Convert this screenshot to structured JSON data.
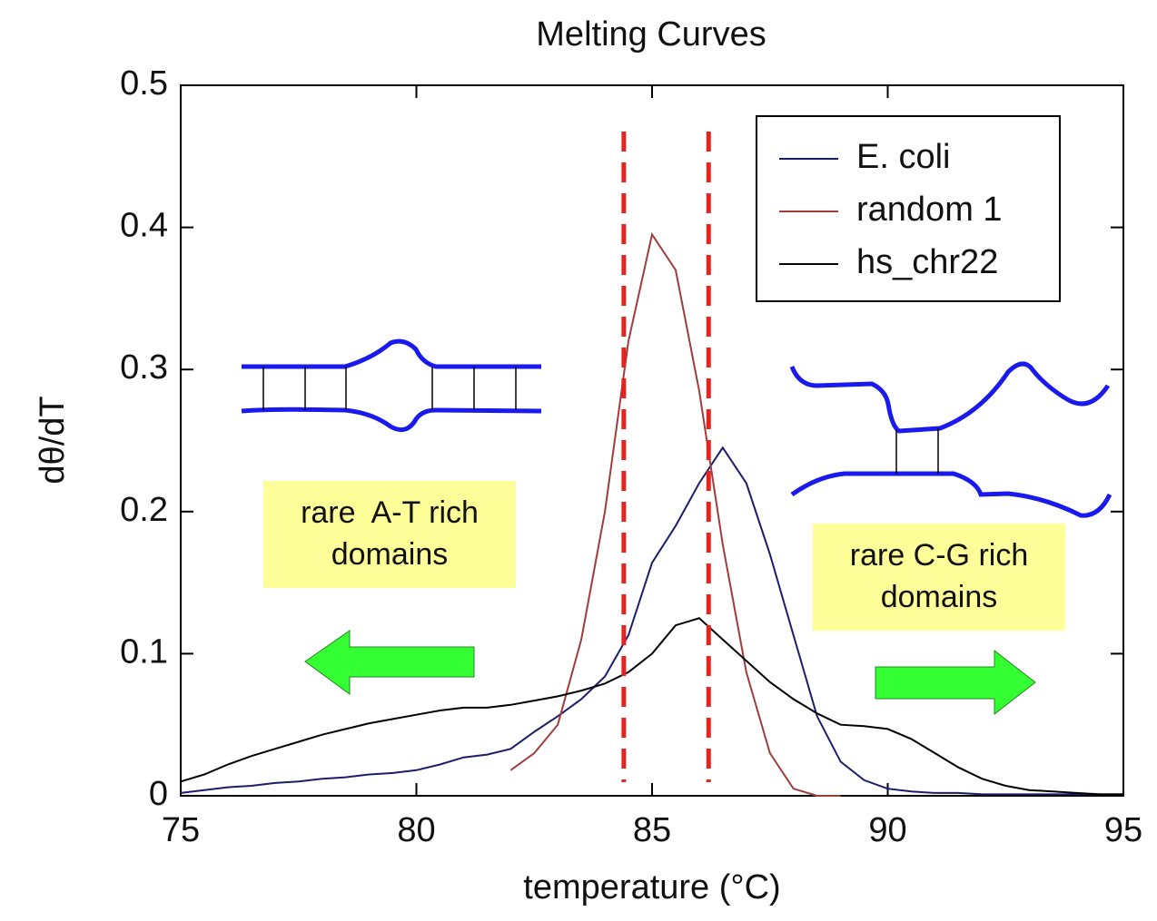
{
  "chart_data": {
    "type": "line",
    "title": "Melting Curves",
    "x_label": "temperature (°C)",
    "y_label": "dθ/dT",
    "x": [
      75,
      75.5,
      76,
      76.5,
      77,
      77.5,
      78,
      78.5,
      79,
      79.5,
      80,
      80.5,
      81,
      81.5,
      82,
      82.5,
      83,
      83.5,
      84,
      84.5,
      85,
      85.5,
      86,
      86.5,
      87,
      87.5,
      88,
      88.5,
      89,
      89.5,
      90,
      90.5,
      91,
      91.5,
      92,
      92.5,
      93,
      93.5,
      94,
      94.5,
      95
    ],
    "series": [
      {
        "name": "E. coli",
        "color": "#1c1c6e",
        "values": [
          0.002,
          0.004,
          0.006,
          0.007,
          0.009,
          0.01,
          0.012,
          0.013,
          0.015,
          0.016,
          0.018,
          0.022,
          0.027,
          0.029,
          0.033,
          0.045,
          0.056,
          0.068,
          0.084,
          0.113,
          0.164,
          0.19,
          0.22,
          0.245,
          0.22,
          0.17,
          0.113,
          0.056,
          0.024,
          0.011,
          0.005,
          0.003,
          0.002,
          0.002,
          0.001,
          0.001,
          0.001,
          0.001,
          0.001,
          0.001,
          0.001
        ]
      },
      {
        "name": "random 1",
        "color": "#a03c3c",
        "values": [
          null,
          null,
          null,
          null,
          null,
          null,
          null,
          null,
          null,
          null,
          null,
          null,
          null,
          null,
          0.018,
          0.03,
          0.05,
          0.11,
          0.2,
          0.32,
          0.395,
          0.37,
          0.285,
          0.177,
          0.087,
          0.03,
          0.005,
          0,
          0,
          null,
          null,
          null,
          null,
          null,
          null,
          null,
          null,
          null,
          null,
          null,
          null
        ]
      },
      {
        "name": "hs_chr22",
        "color": "#000000",
        "values": [
          0.01,
          0.015,
          0.022,
          0.028,
          0.033,
          0.038,
          0.043,
          0.047,
          0.051,
          0.054,
          0.057,
          0.06,
          0.062,
          0.062,
          0.064,
          0.067,
          0.07,
          0.074,
          0.079,
          0.087,
          0.1,
          0.12,
          0.125,
          0.11,
          0.095,
          0.08,
          0.068,
          0.058,
          0.05,
          0.049,
          0.047,
          0.04,
          0.03,
          0.02,
          0.012,
          0.007,
          0.004,
          0.003,
          0.002,
          0.001,
          0.001
        ]
      }
    ],
    "xlim": [
      75,
      95
    ],
    "xticks": [
      75,
      80,
      85,
      90,
      95
    ],
    "ylim": [
      0,
      0.5
    ],
    "yticks": [
      0,
      0.1,
      0.2,
      0.3,
      0.4,
      0.5
    ],
    "vlines": [
      84.4,
      86.2
    ],
    "vline_color": "#e8231d",
    "legend": "upper right",
    "annotations": [
      {
        "lines": [
          "rare  A-T rich",
          "domains"
        ]
      },
      {
        "lines": [
          "rare C-G rich",
          "domains"
        ]
      }
    ]
  }
}
